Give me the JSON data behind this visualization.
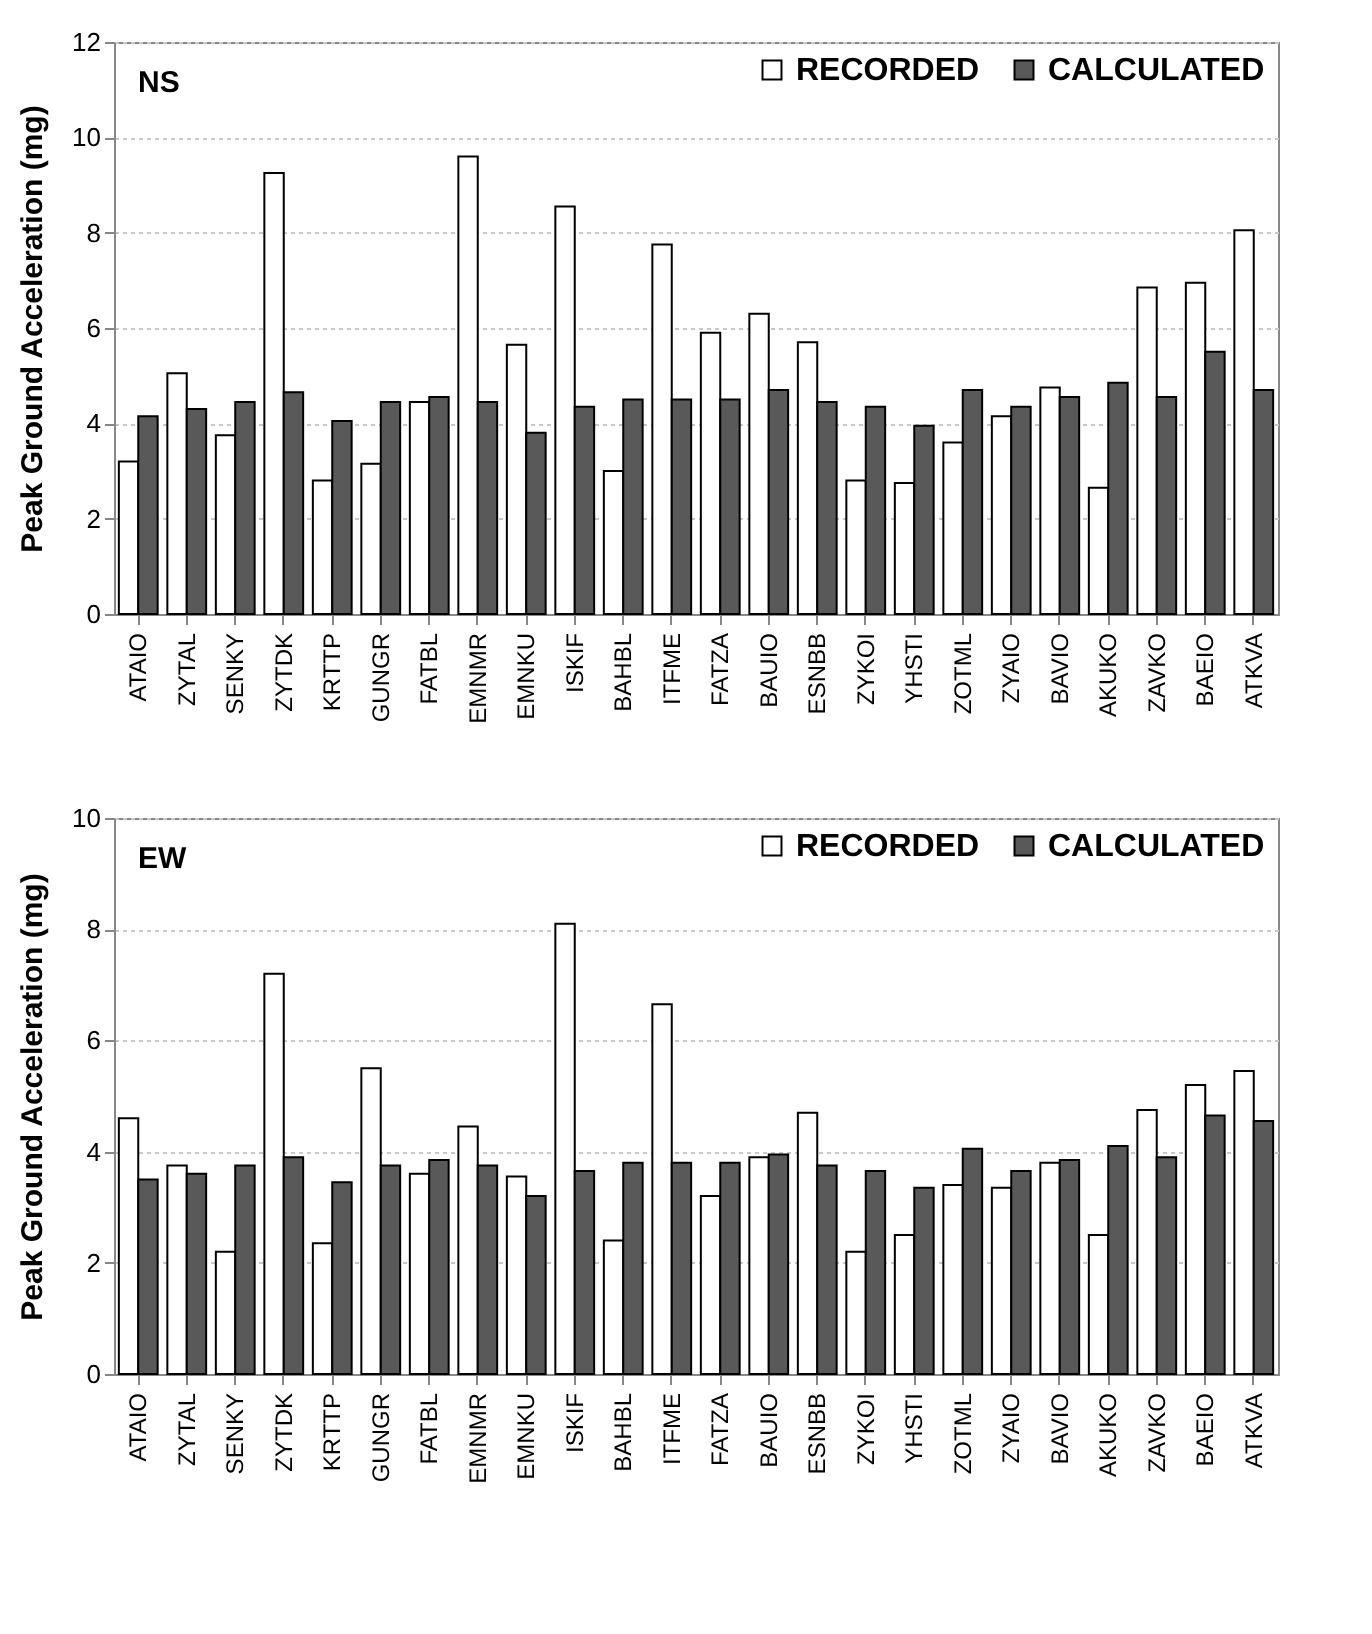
{
  "chart_data": [
    {
      "type": "bar",
      "title": "NS",
      "ylabel": "Peak Ground Acceleration (mg)",
      "categories": [
        "ATAIO",
        "ZYTAL",
        "SENKY",
        "ZYTDK",
        "KRTTP",
        "GUNGR",
        "FATBL",
        "EMNMR",
        "EMNKU",
        "ISKIF",
        "BAHBL",
        "ITFME",
        "FATZA",
        "BAUIO",
        "ESNBB",
        "ZYKOI",
        "YHSTI",
        "ZOTML",
        "ZYAIO",
        "BAVIO",
        "AKUKO",
        "ZAVKO",
        "BAEIO",
        "ATKVA"
      ],
      "series": [
        {
          "name": "RECORDED",
          "color": "#ffffff",
          "values": [
            3.2,
            5.05,
            3.75,
            9.25,
            2.8,
            3.15,
            4.45,
            9.6,
            5.65,
            8.55,
            3.0,
            7.75,
            5.9,
            6.3,
            5.7,
            2.8,
            2.75,
            3.6,
            4.15,
            4.75,
            2.65,
            6.85,
            6.95,
            8.05
          ]
        },
        {
          "name": "CALCULATED",
          "color": "#595959",
          "values": [
            4.15,
            4.3,
            4.45,
            4.65,
            4.05,
            4.45,
            4.55,
            4.45,
            3.8,
            4.35,
            4.5,
            4.5,
            4.5,
            4.7,
            4.45,
            4.35,
            3.95,
            4.7,
            4.35,
            4.55,
            4.85,
            4.55,
            5.5,
            4.7
          ]
        }
      ],
      "ylim": [
        0,
        12
      ],
      "yticks": [
        0,
        2,
        4,
        6,
        8,
        10,
        12
      ],
      "grid": "y",
      "legend": "top right"
    },
    {
      "type": "bar",
      "title": "EW",
      "ylabel": "Peak Ground Acceleration (mg)",
      "categories": [
        "ATAIO",
        "ZYTAL",
        "SENKY",
        "ZYTDK",
        "KRTTP",
        "GUNGR",
        "FATBL",
        "EMNMR",
        "EMNKU",
        "ISKIF",
        "BAHBL",
        "ITFME",
        "FATZA",
        "BAUIO",
        "ESNBB",
        "ZYKOI",
        "YHSTI",
        "ZOTML",
        "ZYAIO",
        "BAVIO",
        "AKUKO",
        "ZAVKO",
        "BAEIO",
        "ATKVA"
      ],
      "series": [
        {
          "name": "RECORDED",
          "color": "#ffffff",
          "values": [
            4.6,
            3.75,
            2.2,
            7.2,
            2.35,
            5.5,
            3.6,
            4.45,
            3.55,
            8.1,
            2.4,
            6.65,
            3.2,
            3.9,
            4.7,
            2.2,
            2.5,
            3.4,
            3.35,
            3.8,
            2.5,
            4.75,
            5.2,
            5.45
          ]
        },
        {
          "name": "CALCULATED",
          "color": "#595959",
          "values": [
            3.5,
            3.6,
            3.75,
            3.9,
            3.45,
            3.75,
            3.85,
            3.75,
            3.2,
            3.65,
            3.8,
            3.8,
            3.8,
            3.95,
            3.75,
            3.65,
            3.35,
            4.05,
            3.65,
            3.85,
            4.1,
            3.9,
            4.65,
            4.55
          ]
        }
      ],
      "ylim": [
        0,
        10
      ],
      "yticks": [
        0,
        2,
        4,
        6,
        8,
        10
      ],
      "grid": "y",
      "legend": "top right"
    }
  ]
}
